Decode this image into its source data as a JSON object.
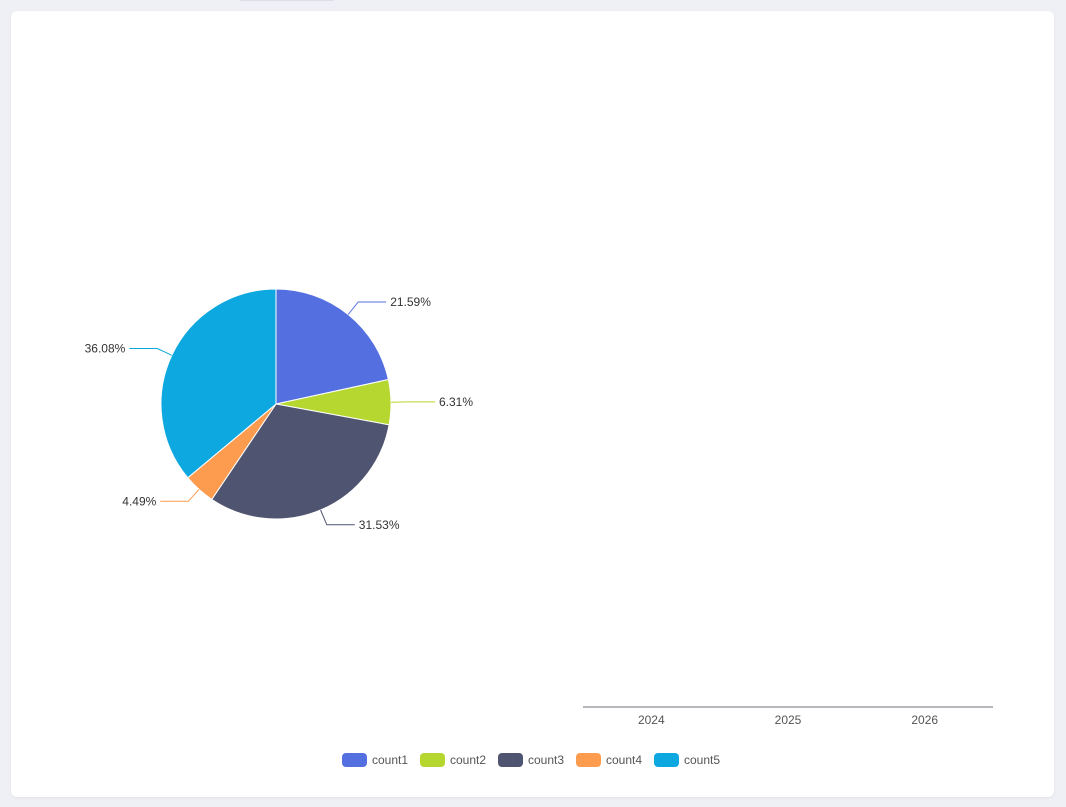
{
  "chart_data": [
    {
      "type": "pie",
      "slices": [
        {
          "name": "count1",
          "label": "21.59%",
          "value": 21.59,
          "color": "#5470e0"
        },
        {
          "name": "count2",
          "label": "6.31%",
          "value": 6.31,
          "color": "#b6d730"
        },
        {
          "name": "count3",
          "label": "31.53%",
          "value": 31.53,
          "color": "#4f5470"
        },
        {
          "name": "count4",
          "label": "4.49%",
          "value": 4.49,
          "color": "#fd9b4f"
        },
        {
          "name": "count5",
          "label": "36.08%",
          "value": 36.08,
          "color": "#0ea8e0"
        }
      ]
    },
    {
      "type": "bar",
      "categories": [
        "2024",
        "2025",
        "2026"
      ],
      "series": []
    }
  ],
  "legend": {
    "position": "bottom-center",
    "items": [
      "count1",
      "count2",
      "count3",
      "count4",
      "count5"
    ]
  }
}
